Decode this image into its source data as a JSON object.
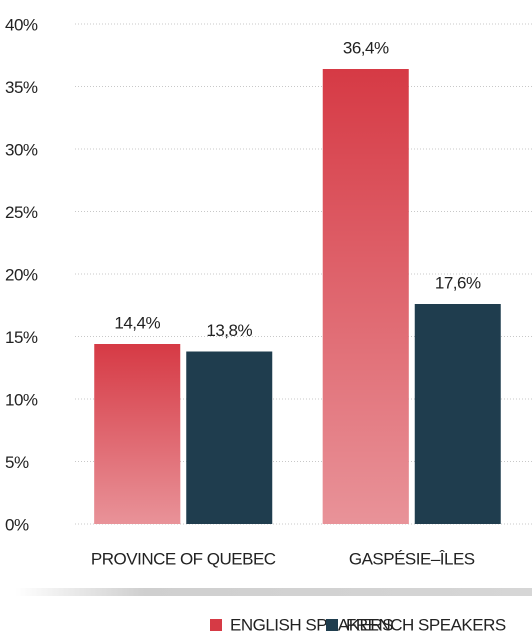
{
  "chart_data": {
    "type": "bar",
    "categories": [
      "PROVINCE OF QUEBEC",
      "GASPÉSIE–ÎLES"
    ],
    "series": [
      {
        "name": "ENGLISH SPEAKERS",
        "color": "#d63a45",
        "values": [
          14.4,
          36.4
        ],
        "value_labels": [
          "14,4%",
          "36,4%"
        ]
      },
      {
        "name": "FRENCH SPEAKERS",
        "color": "#1f3d4e",
        "values": [
          13.8,
          17.6
        ],
        "value_labels": [
          "13,8%",
          "17,6%"
        ]
      }
    ],
    "ylim": [
      0,
      40
    ],
    "yticks": [
      {
        "value": 0,
        "label": "0%"
      },
      {
        "value": 5,
        "label": "5%"
      },
      {
        "value": 10,
        "label": "10%"
      },
      {
        "value": 15,
        "label": "15%"
      },
      {
        "value": 20,
        "label": "20%"
      },
      {
        "value": 25,
        "label": "25%"
      },
      {
        "value": 30,
        "label": "30%"
      },
      {
        "value": 35,
        "label": "35%"
      },
      {
        "value": 40,
        "label": "40%"
      }
    ],
    "grid": true
  }
}
